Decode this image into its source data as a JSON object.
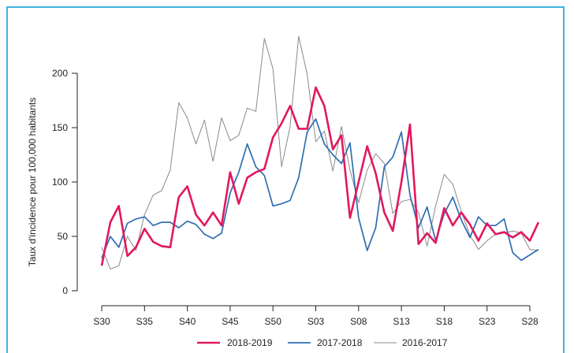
{
  "chart_data": {
    "type": "line",
    "ylabel": "Taux d'incidence pour 100,000 habitants",
    "xlabel": "",
    "y_ticks": [
      0,
      50,
      100,
      150,
      200
    ],
    "x_tick_labels": [
      "S30",
      "S35",
      "S40",
      "S45",
      "S50",
      "S03",
      "S08",
      "S13",
      "S18",
      "S23",
      "S28"
    ],
    "grid": false,
    "legend_position": "bottom",
    "x": [
      "S30",
      "S31",
      "S32",
      "S33",
      "S34",
      "S35",
      "S36",
      "S37",
      "S38",
      "S39",
      "S40",
      "S41",
      "S42",
      "S43",
      "S44",
      "S45",
      "S46",
      "S47",
      "S48",
      "S49",
      "S50",
      "S51",
      "S52",
      "S01",
      "S02",
      "S03",
      "S04",
      "S05",
      "S06",
      "S07",
      "S08",
      "S09",
      "S10",
      "S11",
      "S12",
      "S13",
      "S14",
      "S15",
      "S16",
      "S17",
      "S18",
      "S19",
      "S20",
      "S21",
      "S22",
      "S23",
      "S24",
      "S25",
      "S26",
      "S27",
      "S28",
      "S29"
    ],
    "series": [
      {
        "name": "2018-2019",
        "color": "#e3175f",
        "values": [
          23,
          63,
          78,
          32,
          40,
          57,
          45,
          41,
          40,
          86,
          96,
          70,
          60,
          72,
          60,
          109,
          80,
          104,
          109,
          112,
          141,
          154,
          170,
          149,
          149,
          187,
          170,
          130,
          143,
          67,
          100,
          133,
          108,
          72,
          55,
          100,
          153,
          43,
          53,
          44,
          76,
          60,
          72,
          61,
          46,
          62,
          52,
          54,
          49,
          54,
          46,
          63
        ]
      },
      {
        "name": "2017-2018",
        "color": "#2f6db3",
        "values": [
          30,
          50,
          40,
          62,
          66,
          68,
          60,
          63,
          63,
          58,
          64,
          61,
          52,
          48,
          53,
          90,
          109,
          135,
          114,
          106,
          78,
          80,
          83,
          104,
          146,
          158,
          135,
          125,
          117,
          136,
          67,
          37,
          58,
          114,
          123,
          146,
          88,
          58,
          77,
          46,
          71,
          86,
          65,
          49,
          68,
          60,
          60,
          66,
          35,
          28,
          33,
          38
        ]
      },
      {
        "name": "2016-2017",
        "color": "#8a8a8a",
        "values": [
          40,
          20,
          23,
          50,
          37,
          70,
          88,
          92,
          111,
          173,
          159,
          135,
          157,
          119,
          159,
          138,
          143,
          168,
          165,
          232,
          204,
          114,
          151,
          234,
          199,
          137,
          147,
          110,
          151,
          111,
          81,
          111,
          126,
          117,
          71,
          82,
          84,
          72,
          41,
          78,
          107,
          98,
          73,
          51,
          38,
          46,
          52,
          53,
          55,
          53,
          38,
          37
        ]
      }
    ]
  }
}
